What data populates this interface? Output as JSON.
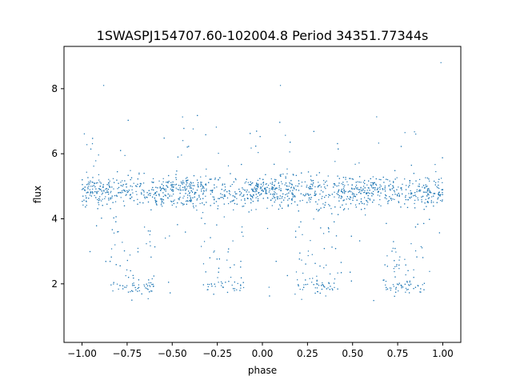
{
  "chart_data": {
    "type": "scatter",
    "title": "1SWASPJ154707.60-102004.8 Period 34351.77344s",
    "xlabel": "phase",
    "ylabel": "flux",
    "xlim": [
      -1.1,
      1.1
    ],
    "ylim": [
      0.2,
      9.3
    ],
    "xticks": [
      -1.0,
      -0.75,
      -0.5,
      -0.25,
      0.0,
      0.25,
      0.5,
      0.75,
      1.0
    ],
    "xtick_labels": [
      "−1.00",
      "−0.75",
      "−0.50",
      "−0.25",
      "0.00",
      "0.25",
      "0.50",
      "0.75",
      "1.00"
    ],
    "yticks": [
      2,
      4,
      6,
      8
    ],
    "ytick_labels": [
      "2",
      "4",
      "6",
      "8"
    ],
    "grid": false,
    "marker_color": "#1f77b4",
    "series": [
      {
        "baseline_flux": 4.85,
        "baseline_spread": 0.35,
        "eclipse_flux_floor": 1.9,
        "eclipse_phase_centers": [
          -0.72,
          -0.22,
          0.3,
          0.78
        ],
        "phase_range": [
          -1.0,
          1.0
        ],
        "sample_points": [
          {
            "x": -1.0,
            "y": 4.9
          },
          {
            "x": -0.9,
            "y": 5.0
          },
          {
            "x": -0.8,
            "y": 4.8
          },
          {
            "x": -0.72,
            "y": 2.0
          },
          {
            "x": -0.5,
            "y": 4.9
          },
          {
            "x": -0.22,
            "y": 1.9
          },
          {
            "x": 0.0,
            "y": 5.0
          },
          {
            "x": 0.3,
            "y": 2.0
          },
          {
            "x": 0.5,
            "y": 4.8
          },
          {
            "x": 0.78,
            "y": 1.9
          },
          {
            "x": 1.0,
            "y": 4.9
          },
          {
            "x": -0.88,
            "y": 8.1
          },
          {
            "x": 0.1,
            "y": 8.1
          },
          {
            "x": 0.99,
            "y": 8.8
          }
        ]
      }
    ]
  }
}
